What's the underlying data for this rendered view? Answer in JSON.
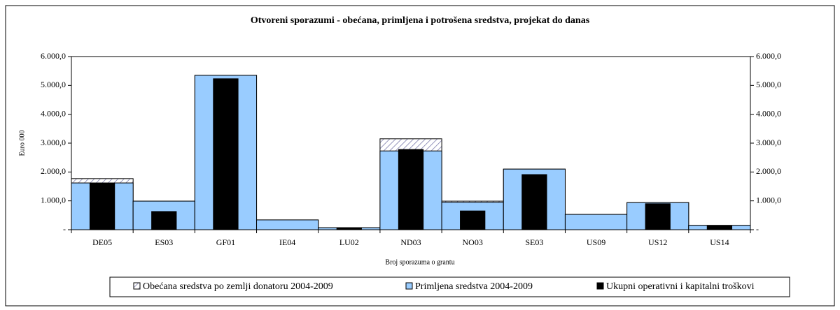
{
  "chart_data": {
    "type": "bar",
    "title": "Otvoreni sporazumi - obećana, primljena i potrošena sredstva, projekat do danas",
    "xlabel": "Broj sporazuma o grantu",
    "ylabel": "Euro 000",
    "categories": [
      "DE05",
      "ES03",
      "GF01",
      "IE04",
      "LU02",
      "ND03",
      "NO03",
      "SE03",
      "US09",
      "US12",
      "US14"
    ],
    "series": [
      {
        "name": "Obećana sredstva po zemlji donatoru 2004-2009",
        "color": "#ffffff",
        "pattern": "hatch",
        "values": [
          1770,
          990,
          5350,
          340,
          70,
          3150,
          990,
          2100,
          530,
          940,
          150
        ]
      },
      {
        "name": "Primljena sredstva 2004-2009",
        "color": "#99ccff",
        "values": [
          1620,
          990,
          5350,
          340,
          70,
          2730,
          950,
          2100,
          530,
          940,
          150
        ]
      },
      {
        "name": "Ukupni operativni i kapitalni troškovi",
        "color": "#000000",
        "narrow": true,
        "values": [
          1620,
          630,
          5230,
          0,
          50,
          2780,
          650,
          1910,
          0,
          900,
          140
        ]
      }
    ],
    "ylim": [
      0,
      6000
    ],
    "yticks": [
      {
        "value": 0,
        "label": "-"
      },
      {
        "value": 1000,
        "label": "1.000,0"
      },
      {
        "value": 2000,
        "label": "2.000,0"
      },
      {
        "value": 3000,
        "label": "3.000,0"
      },
      {
        "value": 4000,
        "label": "4.000,0"
      },
      {
        "value": 5000,
        "label": "5.000,0"
      },
      {
        "value": 6000,
        "label": "6.000,0"
      }
    ],
    "y2lim": [
      0,
      6000
    ],
    "y2ticks": [
      {
        "value": 0,
        "label": "-"
      },
      {
        "value": 1000,
        "label": "1.000,0"
      },
      {
        "value": 2000,
        "label": "2.000,0"
      },
      {
        "value": 3000,
        "label": "3.000,0"
      },
      {
        "value": 4000,
        "label": "4.000,0"
      },
      {
        "value": 5000,
        "label": "5.000,0"
      },
      {
        "value": 6000,
        "label": "6.000,0"
      }
    ],
    "legend": "bottom"
  }
}
